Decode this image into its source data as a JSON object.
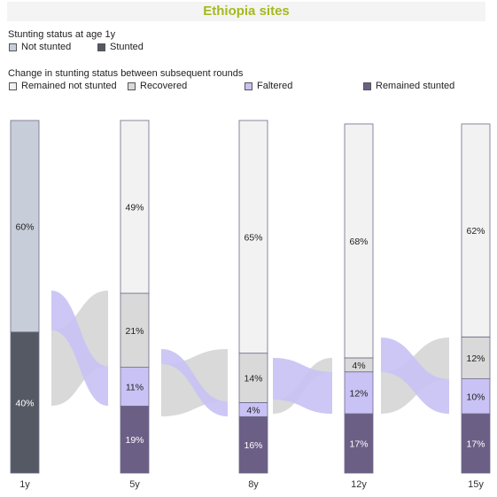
{
  "title": "Ethiopia sites",
  "legend1": {
    "heading": "Stunting status at age 1y",
    "items": [
      {
        "label": "Not stunted",
        "color": "#c7ced9"
      },
      {
        "label": "Stunted",
        "color": "#545964"
      }
    ]
  },
  "legend2": {
    "heading": "Change in stunting status between subsequent rounds",
    "items": [
      {
        "label": "Remained not stunted",
        "color": "#f2f2f2"
      },
      {
        "label": "Recovered",
        "color": "#d9d9d9"
      },
      {
        "label": "Faltered",
        "color": "#c9c2f5"
      },
      {
        "label": "Remained stunted",
        "color": "#6c5f86"
      }
    ]
  },
  "chart_data": {
    "type": "bar",
    "title": "Ethiopia sites",
    "categories": [
      "1y",
      "5y",
      "8y",
      "12y",
      "15y"
    ],
    "stacked": true,
    "ylim": [
      0,
      100
    ],
    "bars": [
      {
        "x": "1y",
        "segments": [
          {
            "name": "Stunted",
            "value": 40,
            "label": "40%"
          },
          {
            "name": "Not stunted",
            "value": 60,
            "label": "60%"
          }
        ]
      },
      {
        "x": "5y",
        "segments": [
          {
            "name": "Remained stunted",
            "value": 19,
            "label": "19%"
          },
          {
            "name": "Faltered",
            "value": 11,
            "label": "11%"
          },
          {
            "name": "Recovered",
            "value": 21,
            "label": "21%"
          },
          {
            "name": "Remained not stunted",
            "value": 49,
            "label": "49%"
          }
        ]
      },
      {
        "x": "8y",
        "segments": [
          {
            "name": "Remained stunted",
            "value": 16,
            "label": "16%"
          },
          {
            "name": "Faltered",
            "value": 4,
            "label": "4%"
          },
          {
            "name": "Recovered",
            "value": 14,
            "label": "14%"
          },
          {
            "name": "Remained not stunted",
            "value": 65,
            "label": "65%"
          }
        ]
      },
      {
        "x": "12y",
        "segments": [
          {
            "name": "Remained stunted",
            "value": 17,
            "label": "17%"
          },
          {
            "name": "Faltered",
            "value": 12,
            "label": "12%"
          },
          {
            "name": "Recovered",
            "value": 4,
            "label": "4%"
          },
          {
            "name": "Remained not stunted",
            "value": 68,
            "label": "68%"
          }
        ]
      },
      {
        "x": "15y",
        "segments": [
          {
            "name": "Remained stunted",
            "value": 17,
            "label": "17%"
          },
          {
            "name": "Faltered",
            "value": 10,
            "label": "10%"
          },
          {
            "name": "Recovered",
            "value": 12,
            "label": "12%"
          },
          {
            "name": "Remained not stunted",
            "value": 62,
            "label": "62%"
          }
        ]
      }
    ],
    "flows": [
      {
        "between": [
          "1y",
          "5y"
        ],
        "faltered": 11,
        "recovered": 21
      },
      {
        "between": [
          "5y",
          "8y"
        ],
        "faltered": 4,
        "recovered": 14
      },
      {
        "between": [
          "8y",
          "12y"
        ],
        "faltered": 12,
        "recovered": 4
      },
      {
        "between": [
          "12y",
          "15y"
        ],
        "faltered": 10,
        "recovered": 12
      }
    ]
  }
}
